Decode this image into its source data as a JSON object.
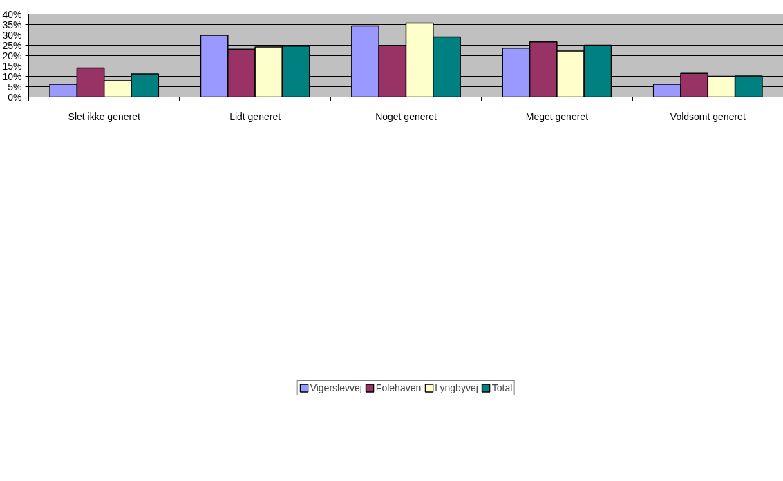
{
  "chart_data": {
    "type": "bar",
    "categories": [
      "Slet ikke generet",
      "Lidt generet",
      "Noget generet",
      "Meget generet",
      "Voldsomt generet"
    ],
    "series": [
      {
        "name": "Vigerslevvej",
        "color": "#9999ff",
        "values": [
          6.2,
          29.8,
          34.3,
          23.6,
          6.2
        ]
      },
      {
        "name": "Folehaven",
        "color": "#993366",
        "values": [
          14.0,
          23.1,
          24.9,
          26.6,
          11.4
        ]
      },
      {
        "name": "Lyngbyvej",
        "color": "#ffffcc",
        "values": [
          7.8,
          24.2,
          35.7,
          22.2,
          10.0
        ]
      },
      {
        "name": "Total",
        "color": "#008080",
        "values": [
          11.2,
          24.6,
          29.0,
          25.0,
          10.2
        ]
      }
    ],
    "ylim": [
      0,
      40
    ],
    "yticks": [
      {
        "value": 0,
        "label": "0%"
      },
      {
        "value": 5,
        "label": "5%"
      },
      {
        "value": 10,
        "label": "10%"
      },
      {
        "value": 15,
        "label": "15%"
      },
      {
        "value": 20,
        "label": "20%"
      },
      {
        "value": 25,
        "label": "25%"
      },
      {
        "value": 30,
        "label": "30%"
      },
      {
        "value": 35,
        "label": "35%"
      },
      {
        "value": 40,
        "label": "40%"
      }
    ],
    "grid": "y",
    "legend": "bottom"
  }
}
